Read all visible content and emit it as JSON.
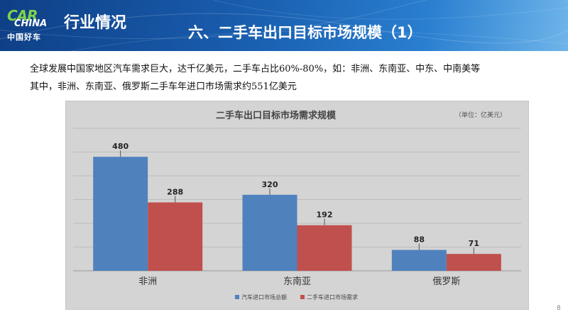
{
  "header": {
    "logo_car": "CAR",
    "logo_china": "CHINA",
    "logo_cn": "中国好车",
    "section_title": "行业情况",
    "slide_title": "六、二手车出口目标市场规模（1）"
  },
  "body": {
    "line1": "全球发展中国家地区汽车需求巨大，达千亿美元，二手车占比60%-80%，如：非洲、东南亚、中东、中南美等",
    "line2": "其中，非洲、东南亚、俄罗斯二手车年进口市场需求约551亿美元"
  },
  "chart_data": {
    "type": "bar",
    "title": "二手车出口目标市场需求规模",
    "unit_note": "（单位：亿美元）",
    "categories": [
      "非洲",
      "东南亚",
      "俄罗斯"
    ],
    "series": [
      {
        "name": "汽车进口市场总额",
        "values": [
          480,
          320,
          88
        ],
        "color": "#4f81bd"
      },
      {
        "name": "二手车进口市场需求",
        "values": [
          288,
          192,
          71
        ],
        "color": "#c0504d"
      }
    ],
    "ylim": [
      0,
      600
    ],
    "grid": true,
    "legend_position": "bottom"
  },
  "page_number": "8"
}
